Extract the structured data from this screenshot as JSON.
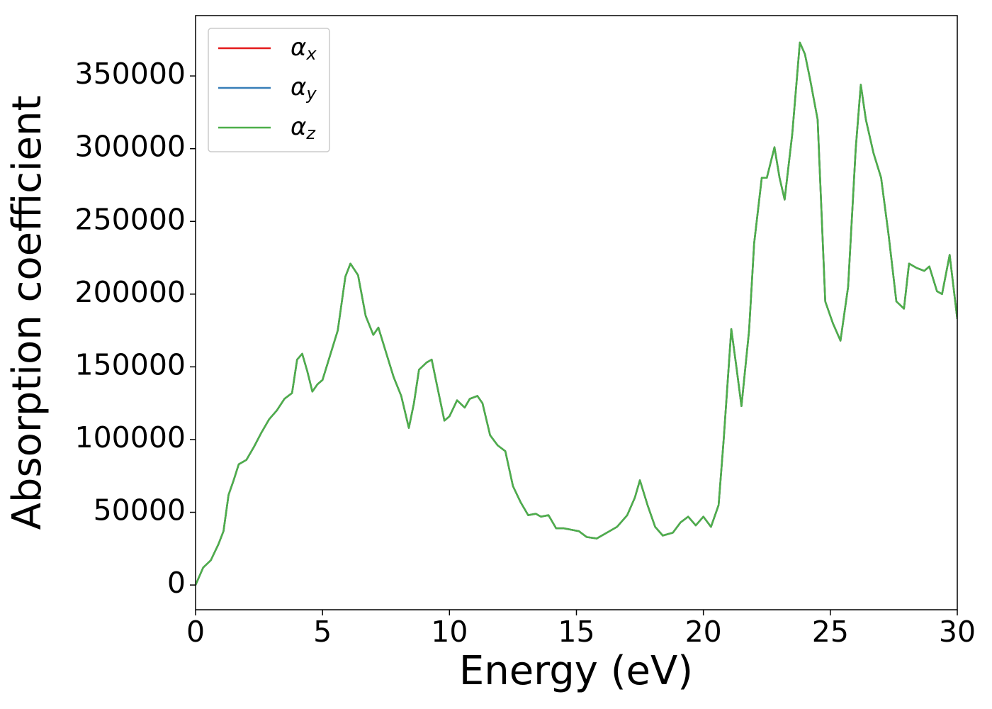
{
  "chart_data": {
    "type": "line",
    "x_label": "Energy (eV)",
    "y_label": "Absorption coefficient",
    "x": [
      0,
      0.3,
      0.6,
      0.9,
      1.1,
      1.3,
      1.5,
      1.7,
      2.0,
      2.3,
      2.6,
      2.9,
      3.2,
      3.5,
      3.8,
      4.0,
      4.2,
      4.4,
      4.6,
      4.8,
      5.0,
      5.3,
      5.6,
      5.9,
      6.1,
      6.4,
      6.7,
      7.0,
      7.2,
      7.5,
      7.8,
      8.1,
      8.4,
      8.6,
      8.8,
      9.1,
      9.3,
      9.5,
      9.8,
      10.0,
      10.3,
      10.6,
      10.8,
      11.1,
      11.3,
      11.6,
      11.9,
      12.2,
      12.5,
      12.8,
      13.1,
      13.4,
      13.6,
      13.9,
      14.2,
      14.5,
      14.8,
      15.1,
      15.4,
      15.8,
      16.2,
      16.6,
      17.0,
      17.3,
      17.5,
      17.8,
      18.1,
      18.4,
      18.8,
      19.1,
      19.4,
      19.7,
      20.0,
      20.3,
      20.6,
      20.8,
      21.1,
      21.3,
      21.5,
      21.8,
      22.0,
      22.3,
      22.5,
      22.8,
      23.0,
      23.2,
      23.5,
      23.8,
      24.0,
      24.2,
      24.5,
      24.8,
      25.1,
      25.4,
      25.7,
      26.0,
      26.2,
      26.4,
      26.7,
      27.0,
      27.3,
      27.6,
      27.9,
      28.1,
      28.4,
      28.7,
      28.9,
      29.2,
      29.4,
      29.7,
      30.0
    ],
    "series": [
      {
        "name": "αx",
        "color": "#e41a1c",
        "values": [
          0,
          12000,
          17000,
          28000,
          37000,
          62000,
          72000,
          83000,
          86000,
          95000,
          105000,
          114000,
          120000,
          128000,
          132000,
          155000,
          159000,
          147000,
          133000,
          138000,
          141000,
          158000,
          175000,
          212000,
          221000,
          213000,
          185000,
          172000,
          177000,
          160000,
          143000,
          130000,
          108000,
          125000,
          148000,
          153000,
          155000,
          138000,
          113000,
          116000,
          127000,
          122000,
          128000,
          130000,
          125000,
          103000,
          96000,
          92000,
          68000,
          57000,
          48000,
          49000,
          47000,
          48000,
          39000,
          39000,
          38000,
          37000,
          33000,
          32000,
          36000,
          40000,
          48000,
          60000,
          72000,
          55000,
          40000,
          34000,
          36000,
          43000,
          47000,
          41000,
          47000,
          40000,
          55000,
          100000,
          176000,
          150000,
          123000,
          175000,
          235000,
          280000,
          280000,
          301000,
          280000,
          265000,
          310000,
          373000,
          365000,
          348000,
          320000,
          195000,
          180000,
          168000,
          205000,
          300000,
          344000,
          320000,
          297000,
          280000,
          240000,
          195000,
          190000,
          221000,
          218000,
          216000,
          219000,
          202000,
          200000,
          227000,
          183000
        ]
      },
      {
        "name": "αy",
        "color": "#377eb8",
        "values": [
          0,
          12000,
          17000,
          28000,
          37000,
          62000,
          72000,
          83000,
          86000,
          95000,
          105000,
          114000,
          120000,
          128000,
          132000,
          155000,
          159000,
          147000,
          133000,
          138000,
          141000,
          158000,
          175000,
          212000,
          221000,
          213000,
          185000,
          172000,
          177000,
          160000,
          143000,
          130000,
          108000,
          125000,
          148000,
          153000,
          155000,
          138000,
          113000,
          116000,
          127000,
          122000,
          128000,
          130000,
          125000,
          103000,
          96000,
          92000,
          68000,
          57000,
          48000,
          49000,
          47000,
          48000,
          39000,
          39000,
          38000,
          37000,
          33000,
          32000,
          36000,
          40000,
          48000,
          60000,
          72000,
          55000,
          40000,
          34000,
          36000,
          43000,
          47000,
          41000,
          47000,
          40000,
          55000,
          100000,
          176000,
          150000,
          123000,
          175000,
          235000,
          280000,
          280000,
          301000,
          280000,
          265000,
          310000,
          373000,
          365000,
          348000,
          320000,
          195000,
          180000,
          168000,
          205000,
          300000,
          344000,
          320000,
          297000,
          280000,
          240000,
          195000,
          190000,
          221000,
          218000,
          216000,
          219000,
          202000,
          200000,
          227000,
          183000
        ]
      },
      {
        "name": "αz",
        "color": "#4daf4a",
        "values": [
          0,
          12000,
          17000,
          28000,
          37000,
          62000,
          72000,
          83000,
          86000,
          95000,
          105000,
          114000,
          120000,
          128000,
          132000,
          155000,
          159000,
          147000,
          133000,
          138000,
          141000,
          158000,
          175000,
          212000,
          221000,
          213000,
          185000,
          172000,
          177000,
          160000,
          143000,
          130000,
          108000,
          125000,
          148000,
          153000,
          155000,
          138000,
          113000,
          116000,
          127000,
          122000,
          128000,
          130000,
          125000,
          103000,
          96000,
          92000,
          68000,
          57000,
          48000,
          49000,
          47000,
          48000,
          39000,
          39000,
          38000,
          37000,
          33000,
          32000,
          36000,
          40000,
          48000,
          60000,
          72000,
          55000,
          40000,
          34000,
          36000,
          43000,
          47000,
          41000,
          47000,
          40000,
          55000,
          100000,
          176000,
          150000,
          123000,
          175000,
          235000,
          280000,
          280000,
          301000,
          280000,
          265000,
          310000,
          373000,
          365000,
          348000,
          320000,
          195000,
          180000,
          168000,
          205000,
          300000,
          344000,
          320000,
          297000,
          280000,
          240000,
          195000,
          190000,
          221000,
          218000,
          216000,
          219000,
          202000,
          200000,
          227000,
          183000
        ]
      }
    ],
    "xlim": [
      0,
      30
    ],
    "xticks": [
      0,
      5,
      10,
      15,
      20,
      25,
      30
    ],
    "ylim": [
      -17000,
      391500
    ],
    "yticks": [
      0,
      50000,
      100000,
      150000,
      200000,
      250000,
      300000,
      350000
    ],
    "legend": "upper left"
  }
}
